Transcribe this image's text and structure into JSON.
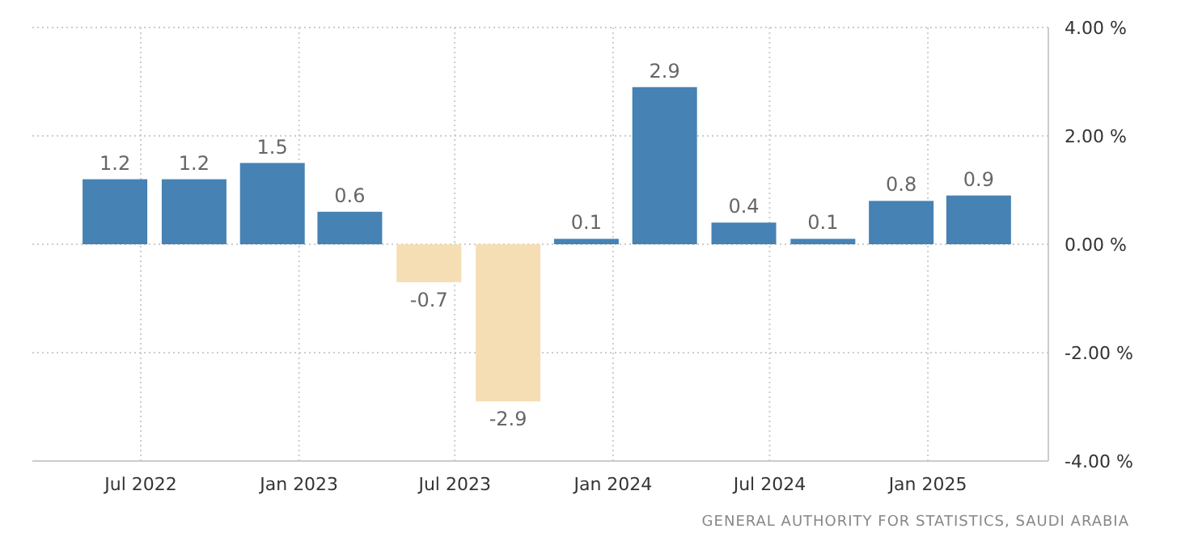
{
  "chart_data": {
    "type": "bar",
    "x": [
      "2022-06",
      "2022-09",
      "2022-12",
      "2023-03",
      "2023-06",
      "2023-09",
      "2023-12",
      "2024-03",
      "2024-06",
      "2024-09",
      "2024-12",
      "2025-03"
    ],
    "values": [
      1.2,
      1.2,
      1.5,
      0.6,
      -0.7,
      -2.9,
      0.1,
      2.9,
      0.4,
      0.1,
      0.8,
      0.9
    ],
    "colors": [
      "#4682b4",
      "#4682b4",
      "#4682b4",
      "#4682b4",
      "#f5deb3",
      "#f5deb3",
      "#4682b4",
      "#4682b4",
      "#4682b4",
      "#4682b4",
      "#4682b4",
      "#4682b4"
    ],
    "data_labels": true,
    "xlim": [
      "2022-02-25",
      "2025-05-21"
    ],
    "xticks": [
      {
        "value": "2022-07",
        "label": "Jul 2022"
      },
      {
        "value": "2023-01",
        "label": "Jan 2023"
      },
      {
        "value": "2023-07",
        "label": "Jul 2023"
      },
      {
        "value": "2024-01",
        "label": "Jan 2024"
      },
      {
        "value": "2024-07",
        "label": "Jul 2024"
      },
      {
        "value": "2025-01",
        "label": "Jan 2025"
      }
    ],
    "ylim": [
      -4,
      4
    ],
    "yticks": [
      {
        "value": 4,
        "label": "4.00 %"
      },
      {
        "value": 2,
        "label": "2.00 %"
      },
      {
        "value": 0,
        "label": "0.00 %"
      },
      {
        "value": -2,
        "label": "-2.00 %"
      },
      {
        "value": -4,
        "label": "-4.00 %"
      }
    ],
    "grid": true,
    "annotations": [
      "GENERAL AUTHORITY FOR STATISTICS, SAUDI ARABIA"
    ]
  }
}
